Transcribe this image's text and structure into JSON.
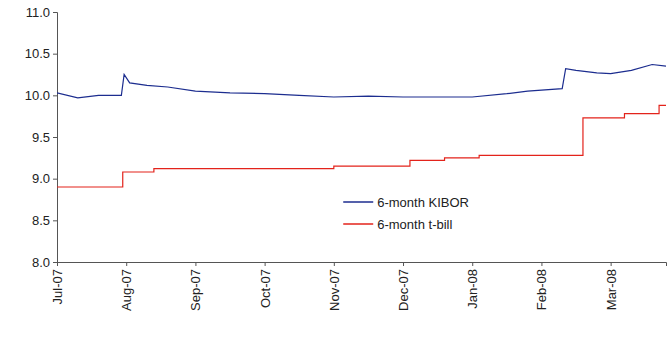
{
  "chart_data": {
    "type": "line",
    "xlim": [
      0,
      8.8
    ],
    "xticks": [
      {
        "value": 0,
        "label": "Jul-07"
      },
      {
        "value": 1,
        "label": "Aug-07"
      },
      {
        "value": 2,
        "label": "Sep-07"
      },
      {
        "value": 3,
        "label": "Oct-07"
      },
      {
        "value": 4,
        "label": "Nov-07"
      },
      {
        "value": 5,
        "label": "Dec-07"
      },
      {
        "value": 6,
        "label": "Jan-08"
      },
      {
        "value": 7,
        "label": "Feb-08"
      },
      {
        "value": 8,
        "label": "Mar-08"
      }
    ],
    "ylim": [
      8,
      11
    ],
    "yticks": [
      {
        "value": 8,
        "label": "8.0"
      },
      {
        "value": 8.5,
        "label": "8.5"
      },
      {
        "value": 9,
        "label": "9.0"
      },
      {
        "value": 9.5,
        "label": "9.5"
      },
      {
        "value": 10,
        "label": "10.0"
      },
      {
        "value": 10.5,
        "label": "10.5"
      },
      {
        "value": 11,
        "label": "11.0"
      }
    ],
    "grid": false,
    "legend": "lower right",
    "series": [
      {
        "name": "6-month KIBOR",
        "color": "#1c2d8f",
        "x": [
          0,
          0.3,
          0.6,
          0.93,
          0.97,
          1.05,
          1.3,
          1.6,
          2.0,
          2.5,
          3.0,
          3.5,
          4.0,
          4.5,
          5.0,
          5.5,
          6.0,
          6.5,
          6.8,
          7.3,
          7.35,
          7.5,
          7.8,
          8.0,
          8.3,
          8.6,
          8.8
        ],
        "values": [
          10.03,
          9.97,
          10.0,
          10.0,
          10.25,
          10.15,
          10.12,
          10.1,
          10.05,
          10.03,
          10.02,
          10.0,
          9.98,
          9.99,
          9.98,
          9.98,
          9.98,
          10.02,
          10.05,
          10.08,
          10.32,
          10.3,
          10.27,
          10.26,
          10.3,
          10.37,
          10.35
        ]
      },
      {
        "name": "6-month t-bill",
        "color": "#e3231b",
        "x": [
          0,
          0.95,
          0.95,
          1.4,
          1.4,
          4.0,
          4.0,
          5.1,
          5.1,
          5.6,
          5.6,
          6.1,
          6.1,
          7.6,
          7.6,
          8.2,
          8.2,
          8.7,
          8.7,
          8.8
        ],
        "values": [
          8.9,
          8.9,
          9.08,
          9.08,
          9.12,
          9.12,
          9.15,
          9.15,
          9.22,
          9.22,
          9.25,
          9.25,
          9.28,
          9.28,
          9.73,
          9.73,
          9.78,
          9.78,
          9.88,
          9.88
        ]
      }
    ]
  }
}
